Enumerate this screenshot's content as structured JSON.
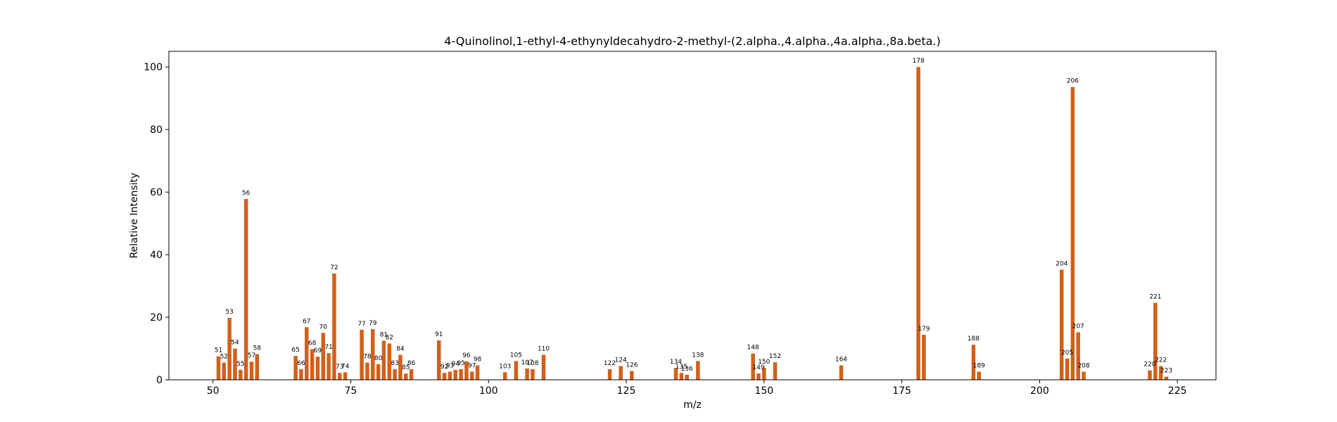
{
  "chart_data": {
    "type": "bar",
    "title": "4-Quinolinol,1-ethyl-4-ethynyldecahydro-2-methyl-(2.alpha.,4.alpha.,4a.alpha.,8a.beta.)",
    "xlabel": "m/z",
    "ylabel": "Relative Intensity",
    "xlim": [
      42,
      232
    ],
    "ylim": [
      0,
      105
    ],
    "xticks": [
      50,
      75,
      100,
      125,
      150,
      175,
      200,
      225
    ],
    "yticks": [
      0,
      20,
      40,
      60,
      80,
      100
    ],
    "bar_color": "#d2601a",
    "grid": false,
    "peaks": [
      {
        "mz": 51,
        "intensity": 7.5,
        "label": "51"
      },
      {
        "mz": 52,
        "intensity": 5.5,
        "label": "52"
      },
      {
        "mz": 53,
        "intensity": 19.8,
        "label": "53"
      },
      {
        "mz": 54,
        "intensity": 10.0,
        "label": "54"
      },
      {
        "mz": 55,
        "intensity": 3.2,
        "label": "55"
      },
      {
        "mz": 56,
        "intensity": 57.8,
        "label": "56"
      },
      {
        "mz": 57,
        "intensity": 5.8,
        "label": "57"
      },
      {
        "mz": 58,
        "intensity": 8.2,
        "label": "58"
      },
      {
        "mz": 65,
        "intensity": 7.6,
        "label": "65"
      },
      {
        "mz": 66,
        "intensity": 3.4,
        "label": "66"
      },
      {
        "mz": 67,
        "intensity": 16.8,
        "label": "67"
      },
      {
        "mz": 68,
        "intensity": 9.8,
        "label": "68"
      },
      {
        "mz": 69,
        "intensity": 7.4,
        "label": "69"
      },
      {
        "mz": 70,
        "intensity": 15.0,
        "label": "70"
      },
      {
        "mz": 71,
        "intensity": 8.5,
        "label": "71"
      },
      {
        "mz": 72,
        "intensity": 34.0,
        "label": "72"
      },
      {
        "mz": 73,
        "intensity": 2.2,
        "label": "73"
      },
      {
        "mz": 74,
        "intensity": 2.4,
        "label": "74"
      },
      {
        "mz": 77,
        "intensity": 16.0,
        "label": "77"
      },
      {
        "mz": 78,
        "intensity": 5.5,
        "label": "78"
      },
      {
        "mz": 79,
        "intensity": 16.2,
        "label": "79"
      },
      {
        "mz": 80,
        "intensity": 5.0,
        "label": "80"
      },
      {
        "mz": 81,
        "intensity": 12.5,
        "label": "81"
      },
      {
        "mz": 82,
        "intensity": 11.6,
        "label": "82"
      },
      {
        "mz": 83,
        "intensity": 3.4,
        "label": "83"
      },
      {
        "mz": 84,
        "intensity": 8.0,
        "label": "84"
      },
      {
        "mz": 85,
        "intensity": 2.0,
        "label": "85"
      },
      {
        "mz": 86,
        "intensity": 3.4,
        "label": "86"
      },
      {
        "mz": 91,
        "intensity": 12.6,
        "label": "91"
      },
      {
        "mz": 92,
        "intensity": 2.2,
        "label": "92"
      },
      {
        "mz": 93,
        "intensity": 2.6,
        "label": "93"
      },
      {
        "mz": 94,
        "intensity": 3.2,
        "label": "94"
      },
      {
        "mz": 95,
        "intensity": 3.4,
        "label": "95"
      },
      {
        "mz": 96,
        "intensity": 5.9,
        "label": "96"
      },
      {
        "mz": 97,
        "intensity": 2.6,
        "label": "97"
      },
      {
        "mz": 98,
        "intensity": 4.6,
        "label": "98"
      },
      {
        "mz": 103,
        "intensity": 2.4,
        "label": "103"
      },
      {
        "mz": 105,
        "intensity": 6.0,
        "label": "105"
      },
      {
        "mz": 107,
        "intensity": 3.6,
        "label": "107"
      },
      {
        "mz": 108,
        "intensity": 3.4,
        "label": "108"
      },
      {
        "mz": 110,
        "intensity": 8.0,
        "label": "110"
      },
      {
        "mz": 122,
        "intensity": 3.4,
        "label": "122"
      },
      {
        "mz": 124,
        "intensity": 4.4,
        "label": "124"
      },
      {
        "mz": 126,
        "intensity": 2.8,
        "label": "126"
      },
      {
        "mz": 134,
        "intensity": 3.8,
        "label": "134"
      },
      {
        "mz": 135,
        "intensity": 2.2,
        "label": "135"
      },
      {
        "mz": 136,
        "intensity": 1.6,
        "label": "136"
      },
      {
        "mz": 138,
        "intensity": 6.0,
        "label": "138"
      },
      {
        "mz": 148,
        "intensity": 8.4,
        "label": "148"
      },
      {
        "mz": 149,
        "intensity": 2.0,
        "label": "149"
      },
      {
        "mz": 150,
        "intensity": 3.8,
        "label": "150"
      },
      {
        "mz": 152,
        "intensity": 5.6,
        "label": "152"
      },
      {
        "mz": 164,
        "intensity": 4.6,
        "label": "164"
      },
      {
        "mz": 178,
        "intensity": 100,
        "label": "178"
      },
      {
        "mz": 179,
        "intensity": 14.4,
        "label": "179"
      },
      {
        "mz": 188,
        "intensity": 11.2,
        "label": "188"
      },
      {
        "mz": 189,
        "intensity": 2.6,
        "label": "189"
      },
      {
        "mz": 204,
        "intensity": 35.2,
        "label": "204"
      },
      {
        "mz": 205,
        "intensity": 6.8,
        "label": "205"
      },
      {
        "mz": 206,
        "intensity": 93.6,
        "label": "206"
      },
      {
        "mz": 207,
        "intensity": 15.2,
        "label": "207"
      },
      {
        "mz": 208,
        "intensity": 2.6,
        "label": "208"
      },
      {
        "mz": 220,
        "intensity": 3.0,
        "label": "220"
      },
      {
        "mz": 221,
        "intensity": 24.6,
        "label": "221"
      },
      {
        "mz": 222,
        "intensity": 4.4,
        "label": "222"
      },
      {
        "mz": 223,
        "intensity": 1.0,
        "label": "223"
      }
    ]
  }
}
